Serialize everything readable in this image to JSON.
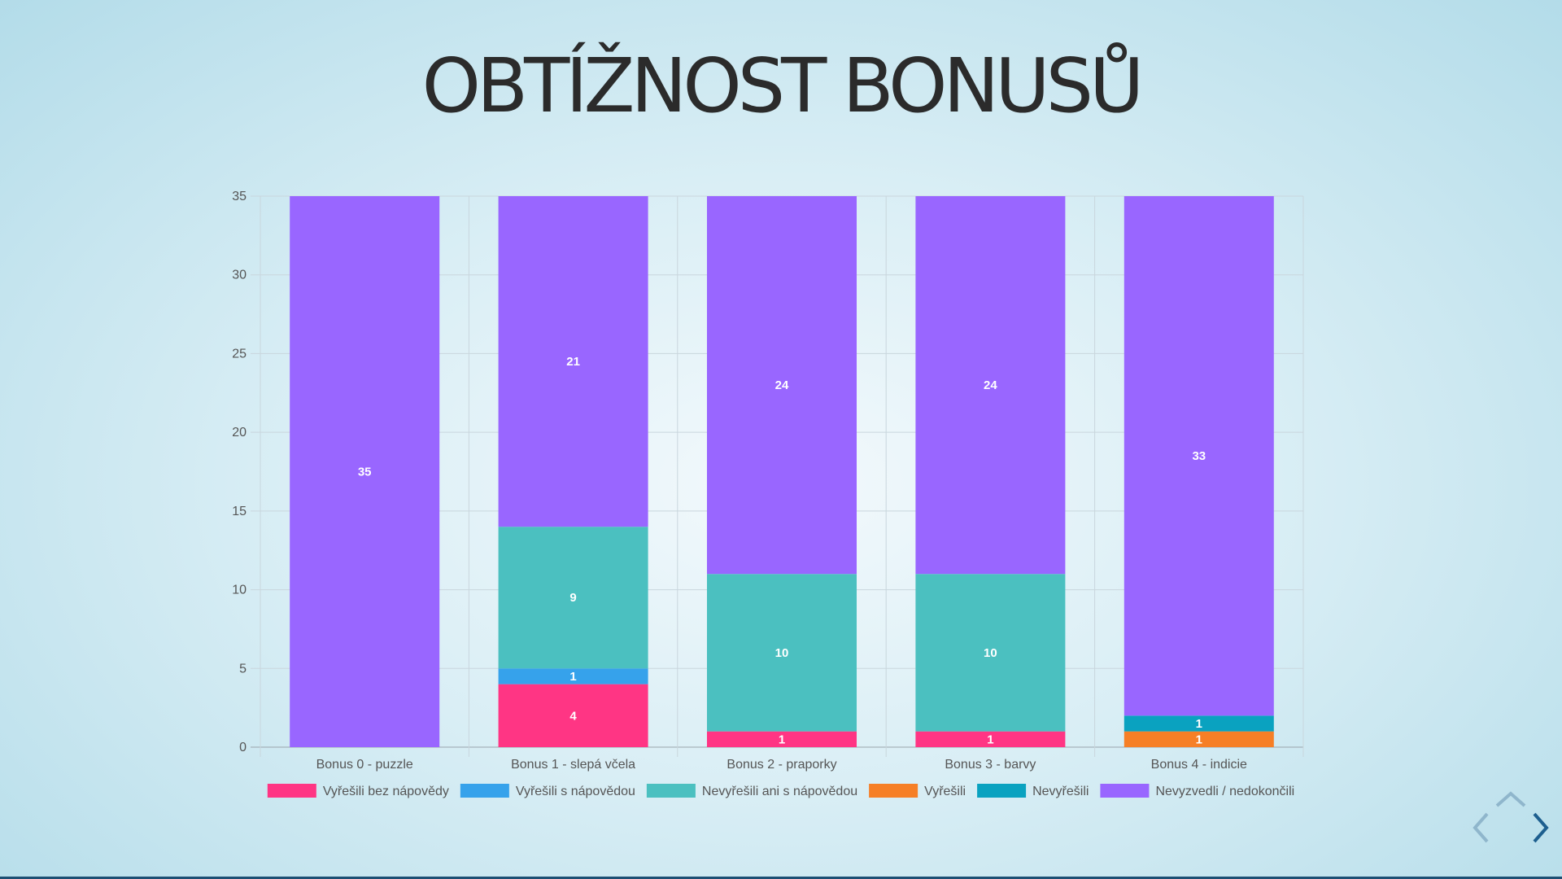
{
  "slide": {
    "title": "OBTÍŽNOST BONUSŮ"
  },
  "colors": {
    "vyresili_bez": "#ff3584",
    "vyresili_s": "#36a2eb",
    "nevyresili_ani": "#4bc0c0",
    "vyresili": "#f67f26",
    "nevyresili": "#0aa2c0",
    "nevyzvedli": "#9966ff"
  },
  "navigation": {
    "prev": "chevron-left-icon",
    "next": "chevron-right-icon",
    "up": "chevron-up-icon"
  },
  "chart_data": {
    "type": "bar",
    "stacked": true,
    "categories": [
      "Bonus 0 - puzzle",
      "Bonus 1 - slepá včela",
      "Bonus 2 - praporky",
      "Bonus 3 - barvy",
      "Bonus 4 - indicie"
    ],
    "ylim": [
      0,
      35
    ],
    "yticks": [
      0,
      5,
      10,
      15,
      20,
      25,
      30,
      35
    ],
    "grid": true,
    "legend_position": "bottom",
    "series": [
      {
        "name": "Vyřešili bez nápovědy",
        "color": "#ff3584",
        "values": [
          0,
          4,
          1,
          1,
          0
        ]
      },
      {
        "name": "Vyřešili s nápovědou",
        "color": "#36a2eb",
        "values": [
          0,
          1,
          0,
          0,
          0
        ]
      },
      {
        "name": "Nevyřešili ani s nápovědou",
        "color": "#4bc0c0",
        "values": [
          0,
          9,
          10,
          10,
          0
        ]
      },
      {
        "name": "Vyřešili",
        "color": "#f67f26",
        "values": [
          0,
          0,
          0,
          0,
          1
        ]
      },
      {
        "name": "Nevyřešili",
        "color": "#0aa2c0",
        "values": [
          0,
          0,
          0,
          0,
          1
        ]
      },
      {
        "name": "Nevyzvedli / nedokončili",
        "color": "#9966ff",
        "values": [
          35,
          21,
          24,
          24,
          33
        ]
      }
    ]
  }
}
